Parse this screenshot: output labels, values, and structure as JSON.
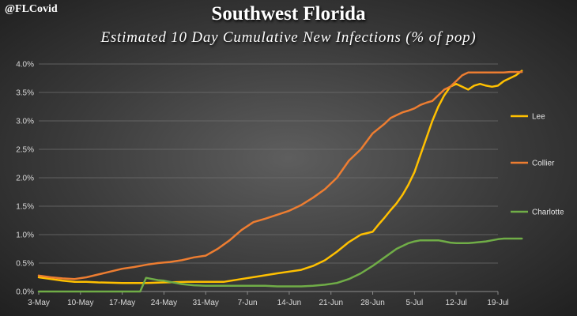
{
  "header": {
    "handle": "@FLCovid",
    "title": "Southwest Florida",
    "subtitle": "Estimated 10 Day Cumulative New Infections (% of pop)"
  },
  "chart_data": {
    "type": "line",
    "x_ticks": [
      "3-May",
      "10-May",
      "17-May",
      "24-May",
      "31-May",
      "7-Jun",
      "14-Jun",
      "21-Jun",
      "28-Jun",
      "5-Jul",
      "12-Jul",
      "19-Jul"
    ],
    "y_ticks": [
      "0.0%",
      "0.5%",
      "1.0%",
      "1.5%",
      "2.0%",
      "2.5%",
      "3.0%",
      "3.5%",
      "4.0%"
    ],
    "ylim": [
      0,
      4.0
    ],
    "grid": true,
    "legend_position": "right",
    "series": [
      {
        "name": "Lee",
        "color": "#ffc000",
        "x": [
          0,
          2,
          4,
          6,
          8,
          10,
          14,
          18,
          21,
          25,
          28,
          31,
          34,
          37,
          40,
          42,
          44,
          46,
          48,
          50,
          52,
          54,
          56,
          57,
          58,
          59,
          60,
          61,
          62,
          63,
          64,
          65,
          66,
          67,
          68,
          69,
          70,
          71,
          72,
          73,
          74,
          75,
          76,
          77,
          78,
          79,
          80,
          81
        ],
        "y": [
          0.25,
          0.22,
          0.19,
          0.17,
          0.17,
          0.16,
          0.15,
          0.15,
          0.16,
          0.17,
          0.17,
          0.17,
          0.22,
          0.27,
          0.32,
          0.35,
          0.38,
          0.45,
          0.55,
          0.7,
          0.87,
          1.0,
          1.05,
          1.18,
          1.3,
          1.43,
          1.55,
          1.7,
          1.88,
          2.1,
          2.4,
          2.7,
          3.0,
          3.25,
          3.45,
          3.6,
          3.65,
          3.6,
          3.55,
          3.62,
          3.65,
          3.62,
          3.6,
          3.62,
          3.7,
          3.75,
          3.8,
          3.88
        ]
      },
      {
        "name": "Collier",
        "color": "#ed7d31",
        "x": [
          0,
          2,
          4,
          6,
          8,
          10,
          12,
          14,
          16,
          18,
          20,
          22,
          24,
          26,
          28,
          30,
          32,
          34,
          36,
          38,
          40,
          42,
          44,
          46,
          48,
          50,
          52,
          54,
          56,
          58,
          59,
          60,
          61,
          62,
          63,
          64,
          65,
          66,
          67,
          68,
          69,
          70,
          71,
          72,
          73,
          74,
          75,
          76,
          77,
          78,
          79,
          80,
          81
        ],
        "y": [
          0.28,
          0.25,
          0.23,
          0.22,
          0.25,
          0.3,
          0.35,
          0.4,
          0.43,
          0.47,
          0.5,
          0.52,
          0.55,
          0.6,
          0.63,
          0.75,
          0.9,
          1.08,
          1.22,
          1.28,
          1.35,
          1.42,
          1.52,
          1.65,
          1.8,
          2.0,
          2.3,
          2.5,
          2.78,
          2.95,
          3.05,
          3.1,
          3.15,
          3.18,
          3.22,
          3.28,
          3.32,
          3.35,
          3.45,
          3.55,
          3.6,
          3.7,
          3.8,
          3.85,
          3.85,
          3.85,
          3.85,
          3.85,
          3.85,
          3.85,
          3.86,
          3.86,
          3.86
        ]
      },
      {
        "name": "Charlotte",
        "color": "#70ad47",
        "x": [
          0,
          17,
          18,
          19,
          20,
          21,
          22,
          23,
          24,
          26,
          28,
          30,
          32,
          34,
          36,
          38,
          40,
          42,
          44,
          46,
          48,
          50,
          52,
          54,
          56,
          58,
          60,
          62,
          63,
          64,
          65,
          66,
          67,
          68,
          69,
          70,
          71,
          72,
          73,
          74,
          75,
          76,
          77,
          78,
          79,
          80,
          81
        ],
        "y": [
          0.0,
          0.0,
          0.24,
          0.22,
          0.2,
          0.19,
          0.17,
          0.15,
          0.13,
          0.11,
          0.1,
          0.1,
          0.1,
          0.1,
          0.1,
          0.1,
          0.09,
          0.09,
          0.09,
          0.1,
          0.12,
          0.15,
          0.22,
          0.32,
          0.45,
          0.6,
          0.75,
          0.85,
          0.88,
          0.9,
          0.9,
          0.9,
          0.9,
          0.88,
          0.86,
          0.85,
          0.85,
          0.85,
          0.86,
          0.87,
          0.88,
          0.9,
          0.92,
          0.93,
          0.93,
          0.93,
          0.93
        ]
      }
    ]
  }
}
